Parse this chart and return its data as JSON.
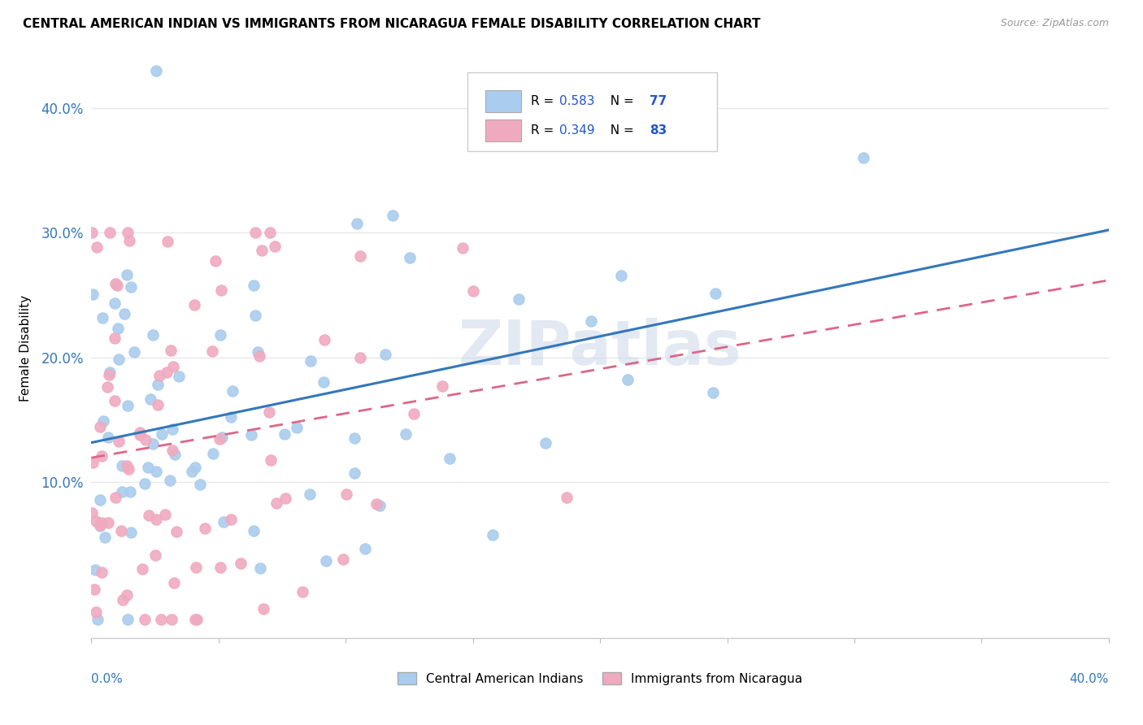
{
  "title": "CENTRAL AMERICAN INDIAN VS IMMIGRANTS FROM NICARAGUA FEMALE DISABILITY CORRELATION CHART",
  "source": "Source: ZipAtlas.com",
  "ylabel": "Female Disability",
  "xlim": [
    0.0,
    0.4
  ],
  "ylim": [
    -0.025,
    0.44
  ],
  "ytick_values": [
    0.1,
    0.2,
    0.3,
    0.4
  ],
  "xtick_values": [
    0.0,
    0.05,
    0.1,
    0.15,
    0.2,
    0.25,
    0.3,
    0.35,
    0.4
  ],
  "series1_color": "#aaccee",
  "series2_color": "#f0aac0",
  "line1_color": "#3377bb",
  "line2_color": "#dd6688",
  "watermark": "ZIPatlas",
  "watermark_color": "#ccd8e8",
  "background_color": "#ffffff",
  "grid_color": "#e8e8e8",
  "legend_text_color": "#2255cc",
  "R1": 0.583,
  "N1": 77,
  "R2": 0.349,
  "N2": 83,
  "seed1": 42,
  "seed2": 99
}
